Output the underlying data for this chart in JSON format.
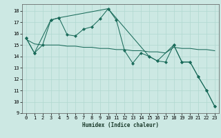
{
  "xlabel": "Humidex (Indice chaleur)",
  "background_color": "#cce8e3",
  "grid_color": "#b0d8d0",
  "line_color": "#1a6b5a",
  "xlim": [
    -0.5,
    23.5
  ],
  "ylim": [
    9,
    18.6
  ],
  "yticks": [
    9,
    10,
    11,
    12,
    13,
    14,
    15,
    16,
    17,
    18
  ],
  "xticks": [
    0,
    1,
    2,
    3,
    4,
    5,
    6,
    7,
    8,
    9,
    10,
    11,
    12,
    13,
    14,
    15,
    16,
    17,
    18,
    19,
    20,
    21,
    22,
    23
  ],
  "series1_x": [
    0,
    1,
    2,
    3,
    4,
    5,
    6,
    7,
    8,
    9,
    10,
    11,
    12,
    13,
    14,
    15,
    16,
    17,
    18,
    19,
    20,
    21,
    22,
    23
  ],
  "series1_y": [
    15.6,
    14.3,
    15.0,
    17.2,
    17.4,
    15.9,
    15.8,
    16.4,
    16.6,
    17.3,
    18.2,
    17.2,
    14.5,
    13.4,
    14.3,
    14.0,
    13.6,
    13.5,
    15.0,
    13.5,
    13.5,
    12.2,
    11.0,
    9.6
  ],
  "series2_x": [
    0,
    1,
    2,
    3,
    4,
    5,
    6,
    7,
    8,
    9,
    10,
    11,
    12,
    13,
    14,
    15,
    16,
    17,
    18,
    19,
    20,
    21,
    22,
    23
  ],
  "series2_y": [
    15.5,
    15.1,
    15.0,
    15.0,
    15.0,
    14.9,
    14.9,
    14.8,
    14.8,
    14.7,
    14.7,
    14.6,
    14.6,
    14.5,
    14.5,
    14.4,
    14.4,
    14.3,
    14.8,
    14.7,
    14.7,
    14.6,
    14.6,
    14.5
  ],
  "series3_x": [
    0,
    1,
    3,
    4,
    10,
    15,
    16,
    18,
    19,
    20,
    21,
    22,
    23
  ],
  "series3_y": [
    15.6,
    14.3,
    17.2,
    17.4,
    18.2,
    14.0,
    13.6,
    15.0,
    13.5,
    13.5,
    12.2,
    11.0,
    9.6
  ]
}
